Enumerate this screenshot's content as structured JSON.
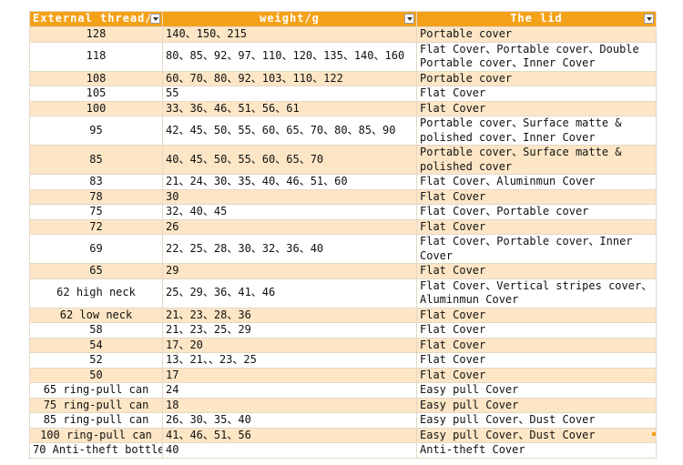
{
  "table": {
    "headers": [
      "External thread/m",
      "weight/g",
      "The lid"
    ],
    "rows": [
      [
        "128",
        "140、150、215",
        "Portable cover"
      ],
      [
        "118",
        "80、85、92、97、110、120、135、140、160",
        "Flat Cover、Portable cover、Double Portable cover、Inner Cover"
      ],
      [
        "108",
        "60、70、80、92、103、110、122",
        "Portable cover"
      ],
      [
        "105",
        "55",
        "Flat Cover"
      ],
      [
        "100",
        "33、36、46、51、56、61",
        "Flat Cover"
      ],
      [
        "95",
        "42、45、50、55、60、65、70、80、85、90",
        "Portable cover、Surface matte & polished cover、Inner Cover"
      ],
      [
        "85",
        "40、45、50、55、60、65、70",
        "Portable cover、Surface matte & polished cover"
      ],
      [
        "83",
        "21、24、30、35、40、46、51、60",
        "Flat Cover、Aluminmun Cover"
      ],
      [
        "78",
        "30",
        "Flat Cover"
      ],
      [
        "75",
        "32、40、45",
        "Flat Cover、Portable cover"
      ],
      [
        "72",
        "26",
        "Flat Cover"
      ],
      [
        "69",
        "22、25、28、30、32、36、40",
        "Flat Cover、Portable cover、Inner Cover"
      ],
      [
        "65",
        "29",
        "Flat Cover"
      ],
      [
        "62 high neck",
        "25、29、36、41、46",
        "Flat Cover、Vertical stripes cover、Aluminmun Cover"
      ],
      [
        "62 low neck",
        "21、23、28、36",
        "Flat Cover"
      ],
      [
        "58",
        "21、23、25、29",
        "Flat Cover"
      ],
      [
        "54",
        "17、20",
        "Flat Cover"
      ],
      [
        "52",
        "13、21、、23、25",
        "Flat Cover"
      ],
      [
        "50",
        "17",
        "Flat Cover"
      ],
      [
        "65 ring-pull can",
        "24",
        "Easy pull Cover"
      ],
      [
        "75 ring-pull can",
        "18",
        "Easy pull Cover"
      ],
      [
        "85 ring-pull can",
        "26、30、35、40",
        "Easy pull Cover、Dust Cover"
      ],
      [
        "100 ring-pull can",
        "41、46、51、56",
        "Easy pull Cover、Dust Cover"
      ],
      [
        "70 Anti-theft bottle",
        "40",
        "Anti-theft Cover"
      ]
    ]
  }
}
